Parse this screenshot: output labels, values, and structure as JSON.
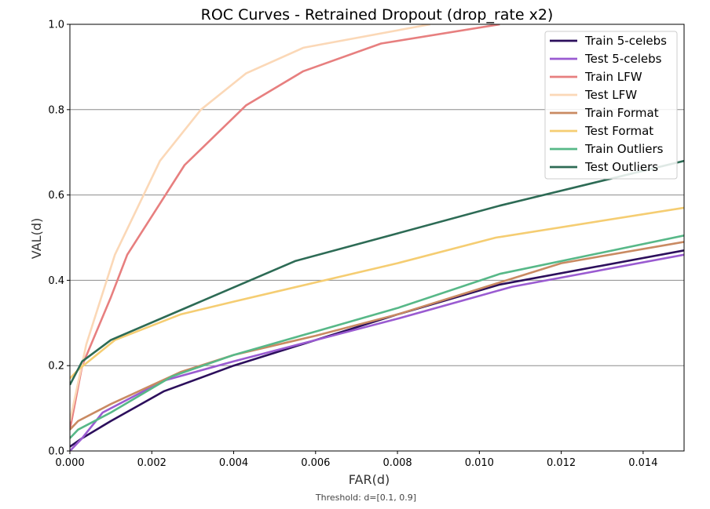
{
  "chart_data": {
    "type": "line",
    "title": "ROC Curves - Retrained Dropout (drop_rate x2)",
    "xlabel": "FAR(d)",
    "ylabel": "VAL(d)",
    "footnote": "Threshold: d=[0.1, 0.9]",
    "xlim": [
      0,
      0.015
    ],
    "ylim": [
      0,
      1.0
    ],
    "xticks": [
      "0.000",
      "0.002",
      "0.004",
      "0.006",
      "0.008",
      "0.010",
      "0.012",
      "0.014"
    ],
    "yticks": [
      "0.0",
      "0.2",
      "0.4",
      "0.6",
      "0.8",
      "1.0"
    ],
    "grid": "horizontal",
    "legend_position": "top-right",
    "series": [
      {
        "name": "Train 5-celebs",
        "color": "#2c0f5c",
        "x": [
          0,
          0.0003,
          0.001,
          0.0023,
          0.004,
          0.006,
          0.008,
          0.0105,
          0.015
        ],
        "y": [
          0.01,
          0.03,
          0.07,
          0.14,
          0.2,
          0.26,
          0.32,
          0.39,
          0.47
        ]
      },
      {
        "name": "Test 5-celebs",
        "color": "#9a5bd1",
        "x": [
          0,
          0.0003,
          0.0008,
          0.0023,
          0.004,
          0.006,
          0.008,
          0.0108,
          0.015
        ],
        "y": [
          0.0,
          0.03,
          0.09,
          0.165,
          0.21,
          0.26,
          0.31,
          0.385,
          0.46
        ]
      },
      {
        "name": "Train LFW",
        "color": "#e77f7f",
        "x": [
          0,
          0.0003,
          0.001,
          0.0014,
          0.0028,
          0.0043,
          0.0057,
          0.0076,
          0.0105
        ],
        "y": [
          0.05,
          0.2,
          0.36,
          0.46,
          0.67,
          0.81,
          0.89,
          0.955,
          1.0
        ]
      },
      {
        "name": "Test LFW",
        "color": "#fbd8b7",
        "x": [
          0,
          0.0004,
          0.0011,
          0.0022,
          0.0032,
          0.0043,
          0.0057,
          0.0088
        ],
        "y": [
          0.07,
          0.25,
          0.46,
          0.68,
          0.8,
          0.885,
          0.945,
          1.0
        ]
      },
      {
        "name": "Train Format",
        "color": "#c98a62",
        "x": [
          0,
          0.0002,
          0.001,
          0.0027,
          0.004,
          0.006,
          0.008,
          0.0105,
          0.012,
          0.015
        ],
        "y": [
          0.05,
          0.07,
          0.11,
          0.185,
          0.225,
          0.27,
          0.32,
          0.395,
          0.44,
          0.49
        ]
      },
      {
        "name": "Test Format",
        "color": "#f5cd72",
        "x": [
          0,
          0.0002,
          0.0011,
          0.0027,
          0.004,
          0.006,
          0.008,
          0.0104,
          0.015
        ],
        "y": [
          0.17,
          0.19,
          0.26,
          0.32,
          0.35,
          0.395,
          0.44,
          0.5,
          0.57
        ]
      },
      {
        "name": "Train Outliers",
        "color": "#57b888",
        "x": [
          0,
          0.0002,
          0.001,
          0.0025,
          0.004,
          0.006,
          0.008,
          0.0105,
          0.015
        ],
        "y": [
          0.03,
          0.05,
          0.09,
          0.175,
          0.225,
          0.28,
          0.335,
          0.415,
          0.505
        ]
      },
      {
        "name": "Test Outliers",
        "color": "#2d6b55",
        "x": [
          0,
          0.0003,
          0.001,
          0.0027,
          0.0055,
          0.008,
          0.0105,
          0.015
        ],
        "y": [
          0.155,
          0.21,
          0.26,
          0.33,
          0.445,
          0.51,
          0.575,
          0.68
        ]
      }
    ]
  }
}
